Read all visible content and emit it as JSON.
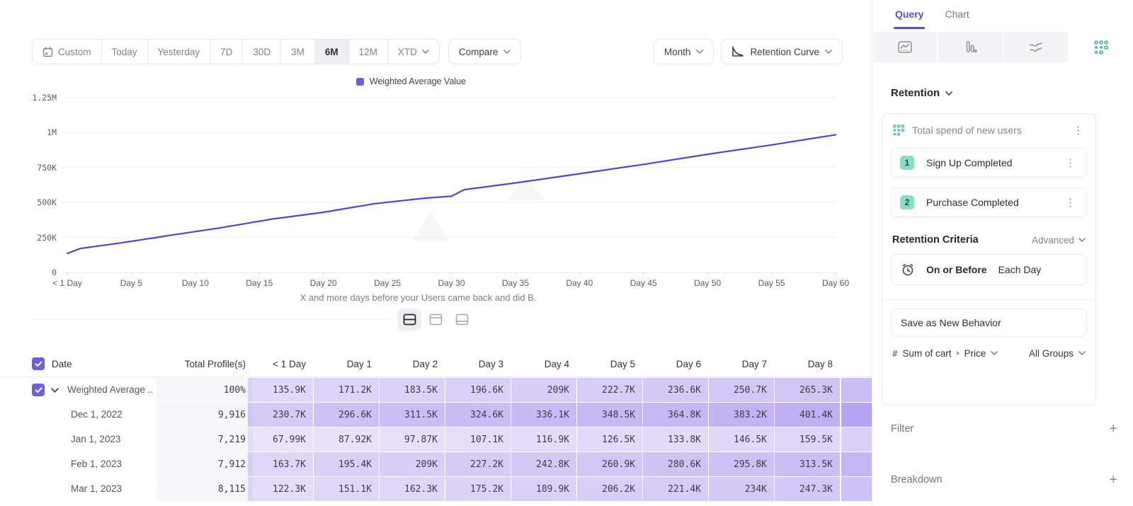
{
  "toolbar": {
    "date_ranges": [
      "Custom",
      "Today",
      "Yesterday",
      "7D",
      "30D",
      "3M",
      "6M",
      "12M",
      "XTD"
    ],
    "selected_range": "6M",
    "compare_label": "Compare",
    "granularity_label": "Month",
    "chart_type_label": "Retention Curve"
  },
  "chart": {
    "legend": "Weighted Average Value",
    "caption": "X and more days before your Users came back and did B.",
    "y_ticks": [
      "0",
      "250K",
      "500K",
      "750K",
      "1M",
      "1.25M"
    ],
    "x_ticks": [
      "< 1 Day",
      "Day 5",
      "Day 10",
      "Day 15",
      "Day 20",
      "Day 25",
      "Day 30",
      "Day 35",
      "Day 40",
      "Day 45",
      "Day 50",
      "Day 55",
      "Day 60"
    ]
  },
  "chart_data": {
    "type": "line",
    "title": "",
    "xlabel": "X and more days before your Users came back and did B.",
    "ylabel": "",
    "ylim": [
      0,
      1250000
    ],
    "xlim": [
      0,
      60
    ],
    "grid": "horizontal",
    "legend_position": "top-center",
    "series": [
      {
        "name": "Weighted Average Value",
        "color": "#5443d6",
        "points": [
          [
            0,
            135900
          ],
          [
            1,
            171200
          ],
          [
            2,
            183500
          ],
          [
            3,
            196600
          ],
          [
            4,
            209000
          ],
          [
            5,
            222700
          ],
          [
            6,
            236600
          ],
          [
            7,
            250700
          ],
          [
            8,
            265300
          ],
          [
            12,
            320000
          ],
          [
            16,
            382000
          ],
          [
            20,
            430000
          ],
          [
            24,
            492000
          ],
          [
            28,
            532000
          ],
          [
            30,
            545000
          ],
          [
            31,
            592000
          ],
          [
            35,
            640000
          ],
          [
            40,
            706000
          ],
          [
            45,
            773000
          ],
          [
            50,
            845000
          ],
          [
            55,
            912000
          ],
          [
            60,
            985000
          ]
        ]
      }
    ]
  },
  "table": {
    "headers": [
      "Date",
      "Total Profile(s)",
      "< 1 Day",
      "Day 1",
      "Day 2",
      "Day 3",
      "Day 4",
      "Day 5",
      "Day 6",
      "Day 7",
      "Day 8"
    ],
    "rows": [
      {
        "label": "Weighted Average ...",
        "checked": true,
        "expandable": true,
        "total": "100%",
        "values": [
          "135.9K",
          "171.2K",
          "183.5K",
          "196.6K",
          "209K",
          "222.7K",
          "236.6K",
          "250.7K",
          "265.3K"
        ]
      },
      {
        "label": "Dec 1, 2022",
        "total": "9,916",
        "values": [
          "230.7K",
          "296.6K",
          "311.5K",
          "324.6K",
          "336.1K",
          "348.5K",
          "364.8K",
          "383.2K",
          "401.4K"
        ]
      },
      {
        "label": "Jan 1, 2023",
        "total": "7,219",
        "values": [
          "67.99K",
          "87.92K",
          "97.87K",
          "107.1K",
          "116.9K",
          "126.5K",
          "133.8K",
          "146.5K",
          "159.5K"
        ]
      },
      {
        "label": "Feb 1, 2023",
        "total": "7,912",
        "values": [
          "163.7K",
          "195.4K",
          "209K",
          "227.2K",
          "242.8K",
          "260.9K",
          "280.6K",
          "295.8K",
          "313.5K"
        ]
      },
      {
        "label": "Mar 1, 2023",
        "total": "8,115",
        "values": [
          "122.3K",
          "151.1K",
          "162.3K",
          "175.2K",
          "189.9K",
          "206.2K",
          "221.4K",
          "234K",
          "247.3K"
        ]
      }
    ]
  },
  "sidebar": {
    "tabs": [
      {
        "label": "Query"
      },
      {
        "label": "Chart"
      }
    ],
    "icon_tabs": [
      "insights-icon",
      "funnels-icon",
      "flows-icon",
      "retention-icon"
    ],
    "active_icon_tab": "retention-icon",
    "section_label": "Retention",
    "behavior": {
      "title": "Total spend of new users",
      "steps": [
        {
          "num": "1",
          "label": "Sign Up Completed"
        },
        {
          "num": "2",
          "label": "Purchase Completed"
        }
      ]
    },
    "criteria": {
      "label": "Retention Criteria",
      "mode": "Advanced",
      "condition": "On or Before",
      "frequency": "Each Day"
    },
    "save_button": "Save as New Behavior",
    "measurement": {
      "prefix": "#",
      "label": "Sum of cart",
      "property": "Price",
      "group": "All Groups"
    },
    "filter_label": "Filter",
    "breakdown_label": "Breakdown"
  },
  "colors": {
    "accent_purple": "#5443d6",
    "legend_swatch": "#6a5be8",
    "checkbox_purple": "#6f5ee2",
    "teal": "#36b7a5",
    "cell_purple_rgb": "122,88,230",
    "tab_active": "#584cc9"
  }
}
